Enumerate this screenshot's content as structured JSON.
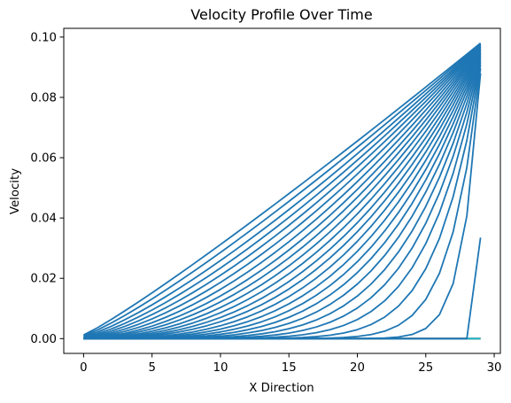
{
  "chart_data": {
    "type": "line",
    "title": "Velocity Profile Over Time",
    "xlabel": "X Direction",
    "ylabel": "Velocity",
    "xlim": [
      -1.45,
      30.45
    ],
    "ylim": [
      -0.0049,
      0.1029
    ],
    "x_ticks": [
      0,
      5,
      10,
      15,
      20,
      25,
      30
    ],
    "x_tick_labels": [
      "0",
      "5",
      "10",
      "15",
      "20",
      "25",
      "30"
    ],
    "y_ticks": [
      0.0,
      0.02,
      0.04,
      0.06,
      0.08,
      0.1
    ],
    "y_tick_labels": [
      "0.00",
      "0.02",
      "0.04",
      "0.06",
      "0.08",
      "0.10"
    ],
    "grid": false,
    "legend": "none",
    "x": [
      0,
      1,
      2,
      3,
      4,
      5,
      6,
      7,
      8,
      9,
      10,
      11,
      12,
      13,
      14,
      15,
      16,
      17,
      18,
      19,
      20,
      21,
      22,
      23,
      24,
      25,
      26,
      27,
      28,
      29
    ],
    "profile_exponents": [
      1.1,
      1.18,
      1.27,
      1.36,
      1.46,
      1.57,
      1.69,
      1.82,
      1.96,
      2.11,
      2.28,
      2.47,
      2.68,
      2.92,
      3.2,
      3.53,
      3.93,
      4.43,
      5.08,
      5.95,
      7.2,
      9.2,
      13.0,
      22.0
    ],
    "profile_end_values": [
      0.098,
      0.0979,
      0.0978,
      0.0977,
      0.0976,
      0.0975,
      0.0973,
      0.0971,
      0.0969,
      0.0967,
      0.0964,
      0.0961,
      0.0958,
      0.0955,
      0.0951,
      0.0947,
      0.0943,
      0.0938,
      0.0932,
      0.0925,
      0.0917,
      0.0908,
      0.0896,
      0.088
    ],
    "profile_start_values": [
      0.0012,
      0.001,
      0.0008,
      0.0006,
      0.0005,
      0.0004,
      0.0003,
      0.0002,
      0.0002,
      0.0001,
      0.0001,
      0.0001,
      0.0001,
      0.0,
      0.0,
      0.0,
      0.0,
      0.0,
      0.0,
      0.0,
      0.0,
      0.0,
      0.0,
      0.0
    ],
    "spike_series": {
      "x": [
        28,
        29
      ],
      "y": [
        0.0,
        0.0335
      ]
    },
    "flat_series": {
      "y": 0.0,
      "count": 6
    },
    "colors": {
      "main": "#1f77b4",
      "flat": [
        "#ff7f0e",
        "#2ca02c",
        "#d62728",
        "#9467bd",
        "#7f7f7f",
        "#17becf"
      ]
    }
  }
}
